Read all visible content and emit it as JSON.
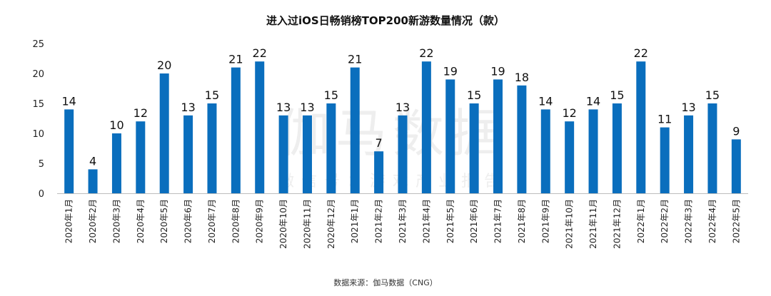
{
  "chart_data": {
    "type": "bar",
    "title": "进入过iOS日畅销榜TOP200新游数量情况（款）",
    "source": "数据来源：伽马数据（CNG）",
    "watermark": "伽马数据",
    "watermark_sub": "微信号：游戏产业报告",
    "bar_color": "#0A6EBD",
    "ylim": [
      0,
      25
    ],
    "yticks": [
      0,
      5,
      10,
      15,
      20,
      25
    ],
    "grid": false,
    "categories": [
      "2020年1月",
      "2020年2月",
      "2020年3月",
      "2020年4月",
      "2020年5月",
      "2020年6月",
      "2020年7月",
      "2020年8月",
      "2020年9月",
      "2020年10月",
      "2020年11月",
      "2020年12月",
      "2021年1月",
      "2021年2月",
      "2021年3月",
      "2021年4月",
      "2021年5月",
      "2021年6月",
      "2021年7月",
      "2021年8月",
      "2021年9月",
      "2021年10月",
      "2021年11月",
      "2021年12月",
      "2022年1月",
      "2022年2月",
      "2022年3月",
      "2022年4月",
      "2022年5月"
    ],
    "values": [
      14,
      4,
      10,
      12,
      20,
      13,
      15,
      21,
      22,
      13,
      13,
      15,
      21,
      7,
      13,
      22,
      19,
      15,
      19,
      18,
      14,
      12,
      14,
      15,
      22,
      11,
      13,
      15,
      9
    ]
  }
}
